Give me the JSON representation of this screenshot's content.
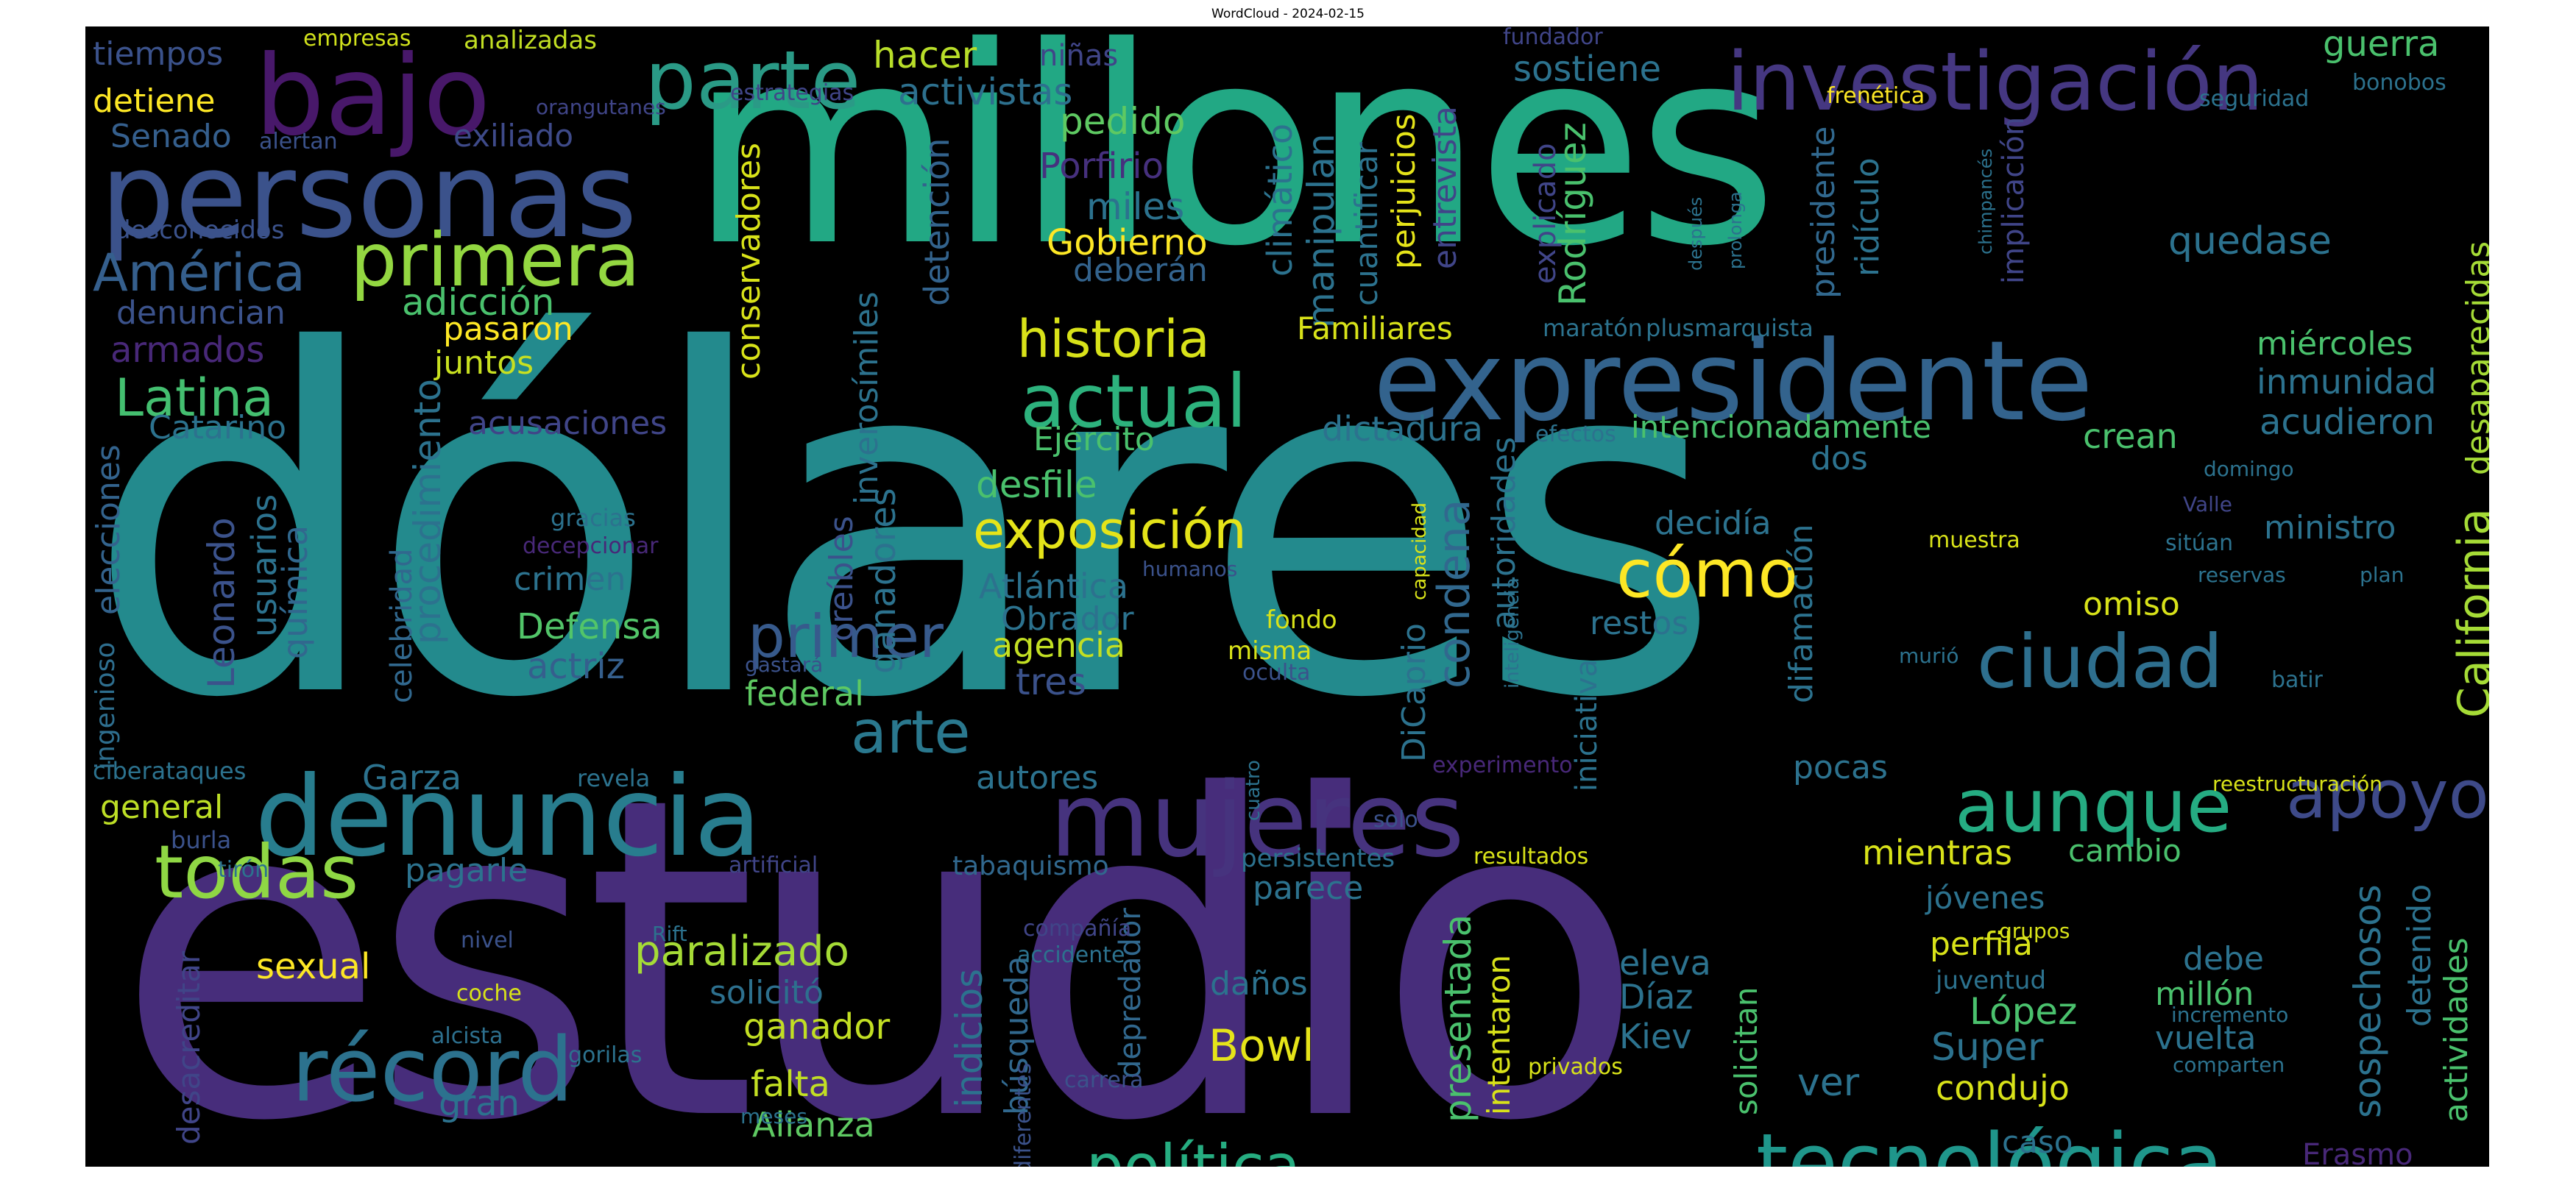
{
  "title": "WordCloud - 2024-02-15",
  "colors": {
    "background": "#000000",
    "palette": [
      "#440154",
      "#46327e",
      "#365c8d",
      "#277f8e",
      "#1fa187",
      "#4ac16d",
      "#a0da39",
      "#fde725"
    ]
  },
  "words": [
    {
      "text": "dólares",
      "c": "#238a8d"
    },
    {
      "text": "estudio",
      "c": "#472d7b"
    },
    {
      "text": "millones",
      "c": "#22a884"
    },
    {
      "text": "personas",
      "c": "#3b528b"
    },
    {
      "text": "bajo",
      "c": "#48186a"
    },
    {
      "text": "expresidente",
      "c": "#33638d"
    },
    {
      "text": "investigación",
      "c": "#453781"
    },
    {
      "text": "denuncia",
      "c": "#287d8e"
    },
    {
      "text": "mujeres",
      "c": "#46337e"
    },
    {
      "text": "parte",
      "c": "#2a9a86"
    },
    {
      "text": "primera",
      "c": "#93d741"
    },
    {
      "text": "tecnológica",
      "c": "#1f968b"
    },
    {
      "text": "récord",
      "c": "#2c728e"
    },
    {
      "text": "todas",
      "c": "#8fd744"
    },
    {
      "text": "actual",
      "c": "#2db27d"
    },
    {
      "text": "historia",
      "c": "#d8e219"
    },
    {
      "text": "aunque",
      "c": "#25ac82"
    },
    {
      "text": "ciudad",
      "c": "#2e6f8e"
    },
    {
      "text": "apoyo",
      "c": "#3e4a89"
    },
    {
      "text": "Latina",
      "c": "#44bf70"
    },
    {
      "text": "América",
      "c": "#355f8d"
    },
    {
      "text": "cómo",
      "c": "#fde725"
    },
    {
      "text": "exposición",
      "c": "#e5e419"
    },
    {
      "text": "política",
      "c": "#26ad81"
    },
    {
      "text": "primer",
      "c": "#375a8c"
    },
    {
      "text": "arte",
      "c": "#2a788e"
    },
    {
      "text": "condena",
      "c": "#31688e"
    },
    {
      "text": "California",
      "c": "#a5db36"
    },
    {
      "text": "tiempos",
      "c": "#3b528b"
    },
    {
      "text": "empresas",
      "c": "#d0e11c"
    },
    {
      "text": "analizadas",
      "c": "#c2df23"
    },
    {
      "text": "detiene",
      "c": "#fde725"
    },
    {
      "text": "Senado",
      "c": "#355f8d"
    },
    {
      "text": "exiliado",
      "c": "#3e4a89"
    },
    {
      "text": "orangutanes",
      "c": "#404588"
    },
    {
      "text": "alertan",
      "c": "#3b528b"
    },
    {
      "text": "estrategias",
      "c": "#404588"
    },
    {
      "text": "hacer",
      "c": "#b8de29"
    },
    {
      "text": "niñas",
      "c": "#404588"
    },
    {
      "text": "activistas",
      "c": "#2d708e"
    },
    {
      "text": "pedido",
      "c": "#5ec962"
    },
    {
      "text": "Porfirio",
      "c": "#46307e"
    },
    {
      "text": "miles",
      "c": "#2c728e"
    },
    {
      "text": "Gobierno",
      "c": "#fde725"
    },
    {
      "text": "deberán",
      "c": "#33638d"
    },
    {
      "text": "desconocidos",
      "c": "#3b528b"
    },
    {
      "text": "adicción",
      "c": "#4ac16d"
    },
    {
      "text": "pasaron",
      "c": "#fde725"
    },
    {
      "text": "denuncian",
      "c": "#3b528b"
    },
    {
      "text": "armados",
      "c": "#482878"
    },
    {
      "text": "juntos",
      "c": "#c8e020"
    },
    {
      "text": "Catarino",
      "c": "#2c728e"
    },
    {
      "text": "acusaciones",
      "c": "#404588"
    },
    {
      "text": "procedimiento",
      "c": "#2c728e"
    },
    {
      "text": "celebridad",
      "c": "#31688e"
    },
    {
      "text": "elecciones",
      "c": "#33638d"
    },
    {
      "text": "ingenioso",
      "c": "#2e6e8e"
    },
    {
      "text": "Leonardo",
      "c": "#3b528b"
    },
    {
      "text": "usuarios",
      "c": "#2c728e"
    },
    {
      "text": "química",
      "c": "#31688e"
    },
    {
      "text": "crimen",
      "c": "#2c728e"
    },
    {
      "text": "Defensa",
      "c": "#52c569"
    },
    {
      "text": "actriz",
      "c": "#355f8d"
    },
    {
      "text": "Garza",
      "c": "#2c728e"
    },
    {
      "text": "general",
      "c": "#bddf26"
    },
    {
      "text": "burla",
      "c": "#3b528b"
    },
    {
      "text": "tirón",
      "c": "#2c728e"
    },
    {
      "text": "pagarle",
      "c": "#2c728e"
    },
    {
      "text": "sexual",
      "c": "#fde725"
    },
    {
      "text": "desacreditar",
      "c": "#404588"
    },
    {
      "text": "nivel",
      "c": "#3b528b"
    },
    {
      "text": "coche",
      "c": "#d8e219"
    },
    {
      "text": "alcista",
      "c": "#2d708e"
    },
    {
      "text": "gorilas",
      "c": "#2c728e"
    },
    {
      "text": "gran",
      "c": "#2c728e"
    },
    {
      "text": "paralizado",
      "c": "#a5db36"
    },
    {
      "text": "solicitó",
      "c": "#2d708e"
    },
    {
      "text": "ganador",
      "c": "#c2df23"
    },
    {
      "text": "falta",
      "c": "#c2df23"
    },
    {
      "text": "Alianza",
      "c": "#5ec962"
    },
    {
      "text": "indicios",
      "c": "#2c728e"
    },
    {
      "text": "búsqueda",
      "c": "#31688e"
    },
    {
      "text": "depredador",
      "c": "#31688e"
    },
    {
      "text": "diferentes",
      "c": "#3b528b"
    },
    {
      "text": "meses",
      "c": "#2c728e"
    },
    {
      "text": "Rift",
      "c": "#2c728e"
    },
    {
      "text": "conservadores",
      "c": "#d8e219"
    },
    {
      "text": "creíbles",
      "c": "#3b528b"
    },
    {
      "text": "inverosímiles",
      "c": "#2c728e"
    },
    {
      "text": "ganadores",
      "c": "#2c728e"
    },
    {
      "text": "detención",
      "c": "#33638d"
    },
    {
      "text": "climático",
      "c": "#2c728e"
    },
    {
      "text": "manipulan",
      "c": "#2c728e"
    },
    {
      "text": "cuantificar",
      "c": "#2c728e"
    },
    {
      "text": "perjuicios",
      "c": "#e5e419"
    },
    {
      "text": "entrevista",
      "c": "#404588"
    },
    {
      "text": "Ejército",
      "c": "#4ac16d"
    },
    {
      "text": "desfile",
      "c": "#4ac16d"
    },
    {
      "text": "Atlántica",
      "c": "#2c728e"
    },
    {
      "text": "Obrador",
      "c": "#2c728e"
    },
    {
      "text": "agencia",
      "c": "#c2df23"
    },
    {
      "text": "tres",
      "c": "#3b528b"
    },
    {
      "text": "federal",
      "c": "#5ec962"
    },
    {
      "text": "autores",
      "c": "#2c728e"
    },
    {
      "text": "Familiares",
      "c": "#d8e219"
    },
    {
      "text": "dictadura",
      "c": "#2c728e"
    },
    {
      "text": "autoridades",
      "c": "#2c728e"
    },
    {
      "text": "DiCaprio",
      "c": "#2c728e"
    },
    {
      "text": "experimento",
      "c": "#482878"
    },
    {
      "text": "cuatro",
      "c": "#2c728e"
    },
    {
      "text": "solo",
      "c": "#3b528b"
    },
    {
      "text": "tabaquismo",
      "c": "#31688e"
    },
    {
      "text": "compañía",
      "c": "#404588"
    },
    {
      "text": "accidente",
      "c": "#2c728e"
    },
    {
      "text": "carrera",
      "c": "#3b528b"
    },
    {
      "text": "persistentes",
      "c": "#2c728e"
    },
    {
      "text": "parece",
      "c": "#2c728e"
    },
    {
      "text": "daños",
      "c": "#2c728e"
    },
    {
      "text": "Bowl",
      "c": "#e5e419"
    },
    {
      "text": "humanos",
      "c": "#3b528b"
    },
    {
      "text": "misma",
      "c": "#d8e219"
    },
    {
      "text": "fondo",
      "c": "#d8e219"
    },
    {
      "text": "oculta",
      "c": "#3b528b"
    },
    {
      "text": "gastará",
      "c": "#3b528b"
    },
    {
      "text": "revela",
      "c": "#2c728e"
    },
    {
      "text": "ciberataques",
      "c": "#2c728e"
    },
    {
      "text": "gracias",
      "c": "#2c728e"
    },
    {
      "text": "decepcionar",
      "c": "#482878"
    },
    {
      "text": "artificial",
      "c": "#404588"
    },
    {
      "text": "capacidad",
      "c": "#d8e219"
    },
    {
      "text": "inteligencia",
      "c": "#2c728e"
    },
    {
      "text": "efectos",
      "c": "#2c728e"
    },
    {
      "text": "maratón",
      "c": "#2c728e"
    },
    {
      "text": "plusmarquista",
      "c": "#2c728e"
    },
    {
      "text": "explicado",
      "c": "#404588"
    },
    {
      "text": "Rodríguez",
      "c": "#4ac16d"
    },
    {
      "text": "presidente",
      "c": "#31688e"
    },
    {
      "text": "ridículo",
      "c": "#2c728e"
    },
    {
      "text": "implicación",
      "c": "#404588"
    },
    {
      "text": "chimpancés",
      "c": "#2c728e"
    },
    {
      "text": "después",
      "c": "#2c728e"
    },
    {
      "text": "prolonga",
      "c": "#2c728e"
    },
    {
      "text": "fundador",
      "c": "#404588"
    },
    {
      "text": "frenética",
      "c": "#fde725"
    },
    {
      "text": "sostiene",
      "c": "#2c728e"
    },
    {
      "text": "quedase",
      "c": "#2c728e"
    },
    {
      "text": "guerra",
      "c": "#4ac16d"
    },
    {
      "text": "seguridad",
      "c": "#2c728e"
    },
    {
      "text": "bonobos",
      "c": "#2c728e"
    },
    {
      "text": "desaparecidas",
      "c": "#a5db36"
    },
    {
      "text": "miércoles",
      "c": "#4ac16d"
    },
    {
      "text": "inmunidad",
      "c": "#2c728e"
    },
    {
      "text": "acudieron",
      "c": "#2c728e"
    },
    {
      "text": "intencionadamente",
      "c": "#4ac16d"
    },
    {
      "text": "dos",
      "c": "#2c728e"
    },
    {
      "text": "crean",
      "c": "#4ac16d"
    },
    {
      "text": "decidía",
      "c": "#2c728e"
    },
    {
      "text": "domingo",
      "c": "#2c728e"
    },
    {
      "text": "Valle",
      "c": "#404588"
    },
    {
      "text": "muestra",
      "c": "#d8e219"
    },
    {
      "text": "sitúan",
      "c": "#2c728e"
    },
    {
      "text": "ministro",
      "c": "#2c728e"
    },
    {
      "text": "reservas",
      "c": "#2c728e"
    },
    {
      "text": "plan",
      "c": "#2c728e"
    },
    {
      "text": "restos",
      "c": "#2c728e"
    },
    {
      "text": "omiso",
      "c": "#d8e219"
    },
    {
      "text": "murió",
      "c": "#2c728e"
    },
    {
      "text": "batir",
      "c": "#2c728e"
    },
    {
      "text": "difamación",
      "c": "#2c728e"
    },
    {
      "text": "iniciativa",
      "c": "#2c728e"
    },
    {
      "text": "pocas",
      "c": "#2c728e"
    },
    {
      "text": "reestructuración",
      "c": "#d8e219"
    },
    {
      "text": "mientras",
      "c": "#d8e219"
    },
    {
      "text": "cambio",
      "c": "#4ac16d"
    },
    {
      "text": "resultados",
      "c": "#d8e219"
    },
    {
      "text": "presentada",
      "c": "#4ac16d"
    },
    {
      "text": "intentaron",
      "c": "#d8e219"
    },
    {
      "text": "eleva",
      "c": "#2c728e"
    },
    {
      "text": "Díaz",
      "c": "#2c728e"
    },
    {
      "text": "Kiev",
      "c": "#2c728e"
    },
    {
      "text": "solicitan",
      "c": "#4ac16d"
    },
    {
      "text": "ver",
      "c": "#2c728e"
    },
    {
      "text": "jóvenes",
      "c": "#2c728e"
    },
    {
      "text": "grupos",
      "c": "#d8e219"
    },
    {
      "text": "perfila",
      "c": "#d8e219"
    },
    {
      "text": "juventud",
      "c": "#2c728e"
    },
    {
      "text": "López",
      "c": "#4ac16d"
    },
    {
      "text": "Super",
      "c": "#2c728e"
    },
    {
      "text": "condujo",
      "c": "#d8e219"
    },
    {
      "text": "caso",
      "c": "#2c728e"
    },
    {
      "text": "sospechosos",
      "c": "#2c728e"
    },
    {
      "text": "debe",
      "c": "#2c728e"
    },
    {
      "text": "millón",
      "c": "#4ac16d"
    },
    {
      "text": "incremento",
      "c": "#2c728e"
    },
    {
      "text": "vuelta",
      "c": "#2c728e"
    },
    {
      "text": "comparten",
      "c": "#2c728e"
    },
    {
      "text": "detenido",
      "c": "#2c728e"
    },
    {
      "text": "actividades",
      "c": "#4ac16d"
    },
    {
      "text": "privados",
      "c": "#d8e219"
    },
    {
      "text": "Erasmo",
      "c": "#482878"
    }
  ]
}
